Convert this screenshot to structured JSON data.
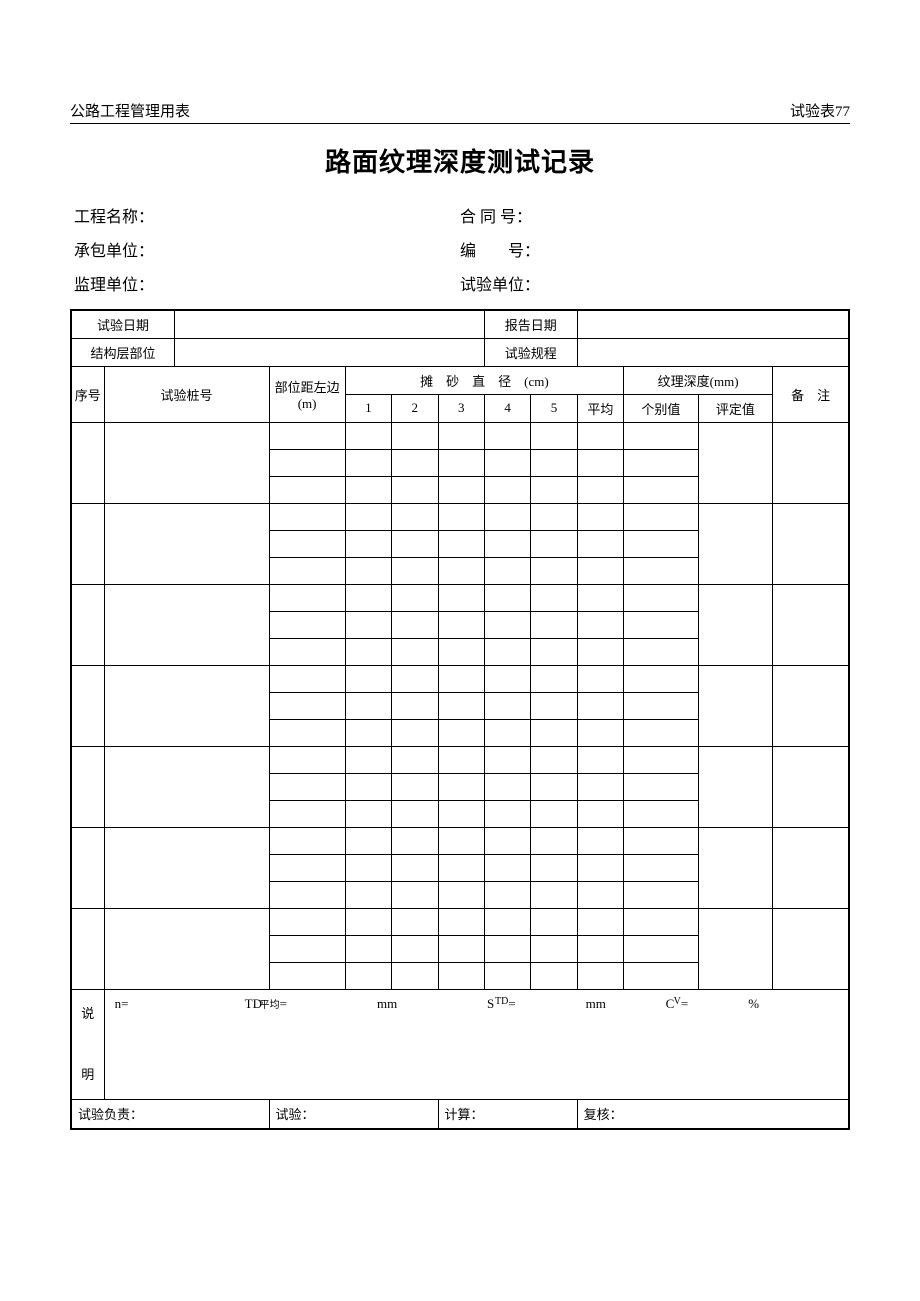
{
  "topbar": {
    "left": "公路工程管理用表",
    "right": "试验表77"
  },
  "title": "路面纹理深度测试记录",
  "meta": {
    "project_label": "工程名称：",
    "contract_label": "合 同 号：",
    "contractor_label": "承包单位：",
    "serial_label": "编　　号：",
    "supervisor_label": "监理单位：",
    "test_unit_label": "试验单位："
  },
  "headers": {
    "test_date": "试验日期",
    "report_date": "报告日期",
    "struct_layer": "结构层部位",
    "test_spec": "试验规程",
    "seq": "序号",
    "pile_no": "试验桩号",
    "dist_left": "部位距左边(m)",
    "sand_diameter": "摊　砂　直　径　(cm)",
    "c1": "1",
    "c2": "2",
    "c3": "3",
    "c4": "4",
    "c5": "5",
    "avg": "平均",
    "texture_depth": "纹理深度(mm)",
    "indiv": "个别值",
    "eval": "评定值",
    "remarks": "备　注"
  },
  "notes": {
    "label_top": "说",
    "label_bot": "明",
    "n": "n=",
    "td_avg_pre": "TD",
    "td_avg_sub": "平均",
    "td_avg_post": "=",
    "mm1": "mm",
    "std_pre": "S",
    "std_sub": "TD",
    "std_post": "=",
    "mm2": "mm",
    "cv_pre": "C",
    "cv_sub": "V",
    "cv_post": "=",
    "pct": "%"
  },
  "sig": {
    "lead": "试验负责：",
    "test": "试验：",
    "calc": "计算：",
    "review": "复核："
  },
  "style": {
    "page_bg": "#ffffff",
    "border_color": "#000000",
    "text_color": "#000000",
    "title_fontsize": 26,
    "body_fontsize": 13,
    "meta_fontsize": 16,
    "outer_border_width": 2,
    "inner_border_width": 1,
    "data_groups": 7,
    "rows_per_group": 3,
    "col_widths_pct": [
      5.3,
      11.4,
      9.2,
      5.6,
      5.6,
      5.6,
      5.6,
      5.6,
      5.6,
      9.0,
      9.0,
      8.5
    ]
  }
}
